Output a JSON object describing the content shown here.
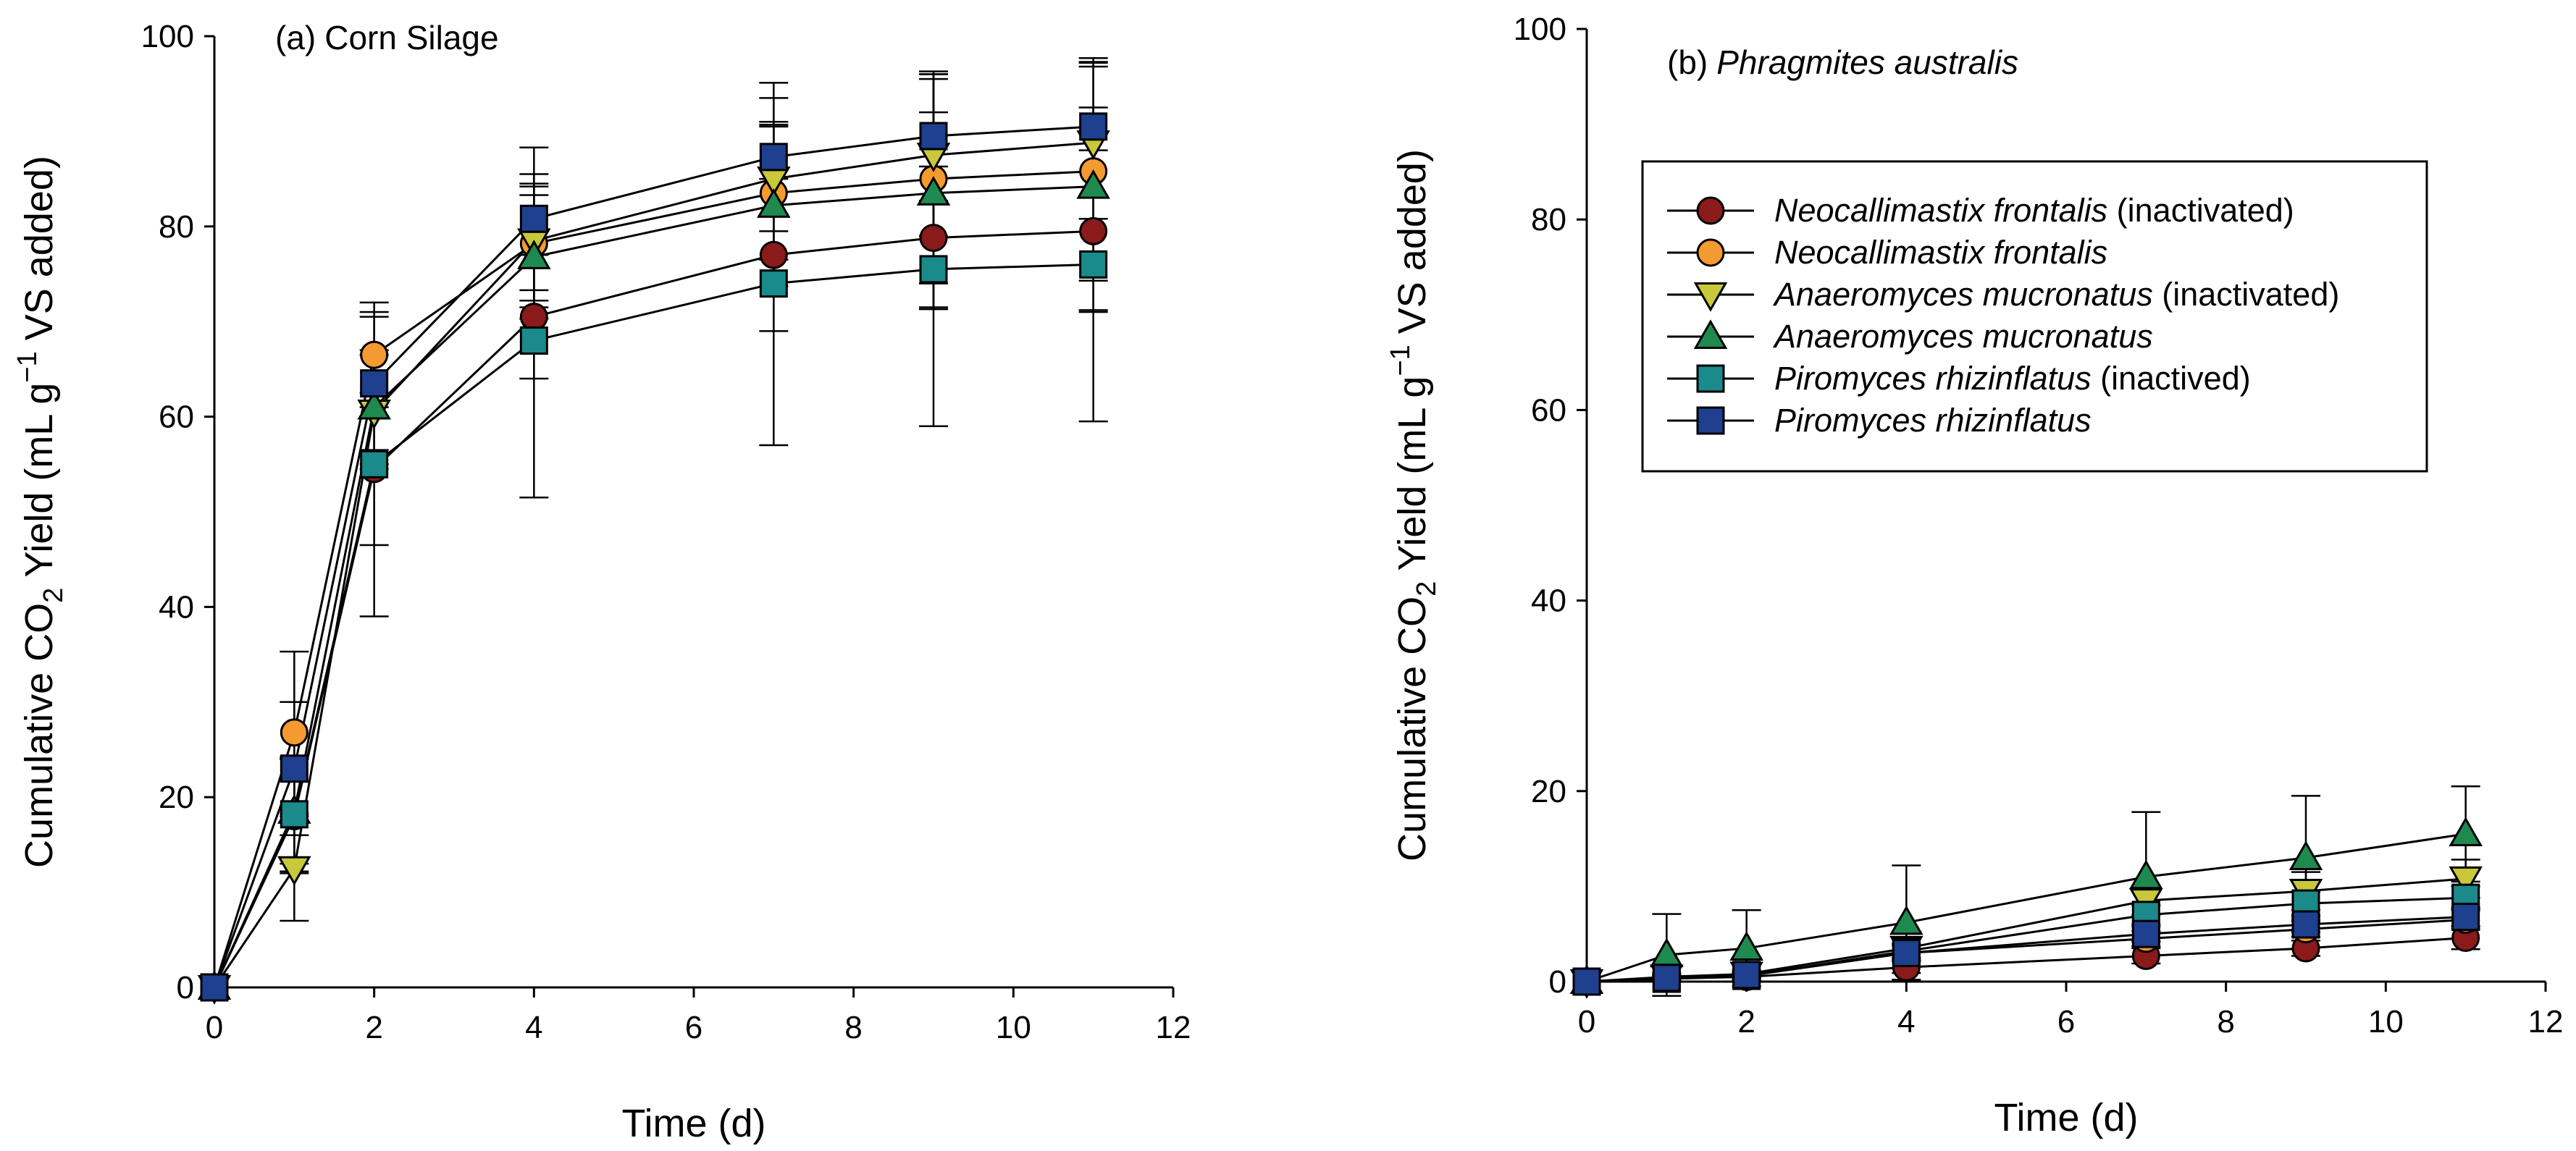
{
  "chart_data": [
    {
      "type": "line",
      "title": "(a) Corn Silage",
      "title_prefix": "(a)",
      "title_name": "Corn Silage",
      "xlabel": "Time (d)",
      "ylabel_parts": {
        "pre": "Cumulative CO",
        "sub": "2",
        "mid": " Yield (mL g",
        "sup": "−1",
        "post": " VS added)"
      },
      "xlim": [
        0,
        12
      ],
      "ylim": [
        0,
        100
      ],
      "xticks": [
        0,
        2,
        4,
        6,
        8,
        10,
        12
      ],
      "yticks": [
        0,
        20,
        40,
        60,
        80,
        100
      ],
      "x": [
        0,
        1,
        2,
        4,
        7,
        9,
        11
      ],
      "series": [
        {
          "name": "Neocallimastix frontalis (inactivated)",
          "marker": "circle",
          "color": "#8b1a1a",
          "values": [
            0,
            18.0,
            54.5,
            70.5,
            77.0,
            78.8,
            79.5
          ],
          "errors": [
            0,
            6.0,
            8.0,
            6.5,
            8.0,
            7.5,
            8.5
          ]
        },
        {
          "name": "Neocallimastix frontalis",
          "marker": "circle",
          "color": "#f59a30",
          "values": [
            0,
            26.8,
            66.5,
            78.2,
            83.5,
            85.0,
            85.8
          ],
          "errors": [
            0,
            8.5,
            5.5,
            6.0,
            7.0,
            11.0,
            11.5
          ]
        },
        {
          "name": "Anaeromyces mucronatus (inactivated)",
          "marker": "triangle-down",
          "color": "#c8c83a",
          "values": [
            0,
            12.5,
            60.5,
            78.5,
            85.0,
            87.5,
            88.8
          ],
          "errors": [
            0,
            5.5,
            6.0,
            7.0,
            8.5,
            8.5,
            8.0
          ]
        },
        {
          "name": "Anaeromyces mucronatus",
          "marker": "triangle-up",
          "color": "#1f8a4f",
          "values": [
            0,
            18.5,
            61.0,
            76.8,
            82.2,
            83.5,
            84.2
          ],
          "errors": [
            0,
            5.5,
            6.0,
            6.5,
            8.5,
            12.0,
            13.0
          ]
        },
        {
          "name": "Piromyces rhizinflatus (inactived)",
          "marker": "square",
          "color": "#1a8a8a",
          "values": [
            0,
            18.2,
            55.0,
            68.0,
            74.0,
            75.5,
            76.0
          ],
          "errors": [
            0,
            6.0,
            16.0,
            16.5,
            17.0,
            16.5,
            16.5
          ]
        },
        {
          "name": "Piromyces rhizinflatus",
          "marker": "square",
          "color": "#1f3f8f",
          "values": [
            0,
            23.0,
            63.5,
            80.8,
            87.3,
            89.5,
            90.5
          ],
          "errors": [
            0,
            7.0,
            7.0,
            7.5,
            7.8,
            6.8,
            7.2
          ]
        }
      ]
    },
    {
      "type": "line",
      "title": "(b) Phragmites australis",
      "title_prefix": "(b)",
      "title_name": "Phragmites australis",
      "xlabel": "Time (d)",
      "ylabel_parts": {
        "pre": "Cumulative CO",
        "sub": "2",
        "mid": " Yield (mL g",
        "sup": "−1",
        "post": " VS added)"
      },
      "xlim": [
        0,
        12
      ],
      "ylim": [
        0,
        100
      ],
      "xticks": [
        0,
        2,
        4,
        6,
        8,
        10,
        12
      ],
      "yticks": [
        0,
        20,
        40,
        60,
        80,
        100
      ],
      "legend_position": "upper-right",
      "x": [
        0,
        1,
        2,
        4,
        7,
        9,
        11
      ],
      "series": [
        {
          "name": "Neocallimastix frontalis (inactivated)",
          "marker": "circle",
          "color": "#8b1a1a",
          "values": [
            0,
            0.3,
            0.5,
            1.5,
            2.7,
            3.5,
            4.6
          ],
          "errors": [
            0,
            0.3,
            0.3,
            0.6,
            0.8,
            0.8,
            1.2
          ]
        },
        {
          "name": "Neocallimastix frontalis",
          "marker": "circle",
          "color": "#f59a30",
          "values": [
            0,
            0.4,
            0.6,
            3.0,
            4.5,
            5.5,
            6.5
          ],
          "errors": [
            0,
            0.3,
            0.3,
            0.8,
            0.8,
            0.8,
            1.0
          ]
        },
        {
          "name": "Anaeromyces mucronatus (inactivated)",
          "marker": "triangle-down",
          "color": "#c8c83a",
          "values": [
            0,
            0.5,
            0.8,
            3.5,
            8.5,
            9.5,
            10.8
          ],
          "errors": [
            0,
            0.4,
            0.4,
            1.0,
            1.5,
            2.0,
            2.0
          ]
        },
        {
          "name": "Anaeromyces mucronatus",
          "marker": "triangle-up",
          "color": "#1f8a4f",
          "values": [
            0,
            2.8,
            3.5,
            6.2,
            11.0,
            13.0,
            15.5
          ],
          "errors": [
            0,
            4.3,
            4.0,
            6.0,
            6.8,
            6.5,
            5.0
          ]
        },
        {
          "name": "Piromyces rhizinflatus (inactived)",
          "marker": "square",
          "color": "#1a8a8a",
          "values": [
            0,
            0.3,
            0.6,
            3.2,
            7.0,
            8.2,
            8.8
          ],
          "errors": [
            0,
            0.3,
            0.3,
            0.8,
            1.0,
            1.2,
            1.2
          ]
        },
        {
          "name": "Piromyces rhizinflatus",
          "marker": "square",
          "color": "#1f3f8f",
          "values": [
            0,
            0.4,
            0.7,
            3.0,
            5.0,
            6.0,
            6.8
          ],
          "errors": [
            0,
            0.3,
            0.3,
            0.8,
            0.8,
            0.8,
            1.0
          ]
        }
      ],
      "legend": [
        {
          "species": "Neocallimastix frontalis",
          "note": " (inactivated)"
        },
        {
          "species": "Neocallimastix frontalis",
          "note": ""
        },
        {
          "species": "Anaeromyces mucronatus",
          "note": " (inactivated)"
        },
        {
          "species": "Anaeromyces mucronatus",
          "note": ""
        },
        {
          "species": "Piromyces rhizinflatus",
          "note": " (inactived)"
        },
        {
          "species": "Piromyces rhizinflatus",
          "note": ""
        }
      ]
    }
  ]
}
